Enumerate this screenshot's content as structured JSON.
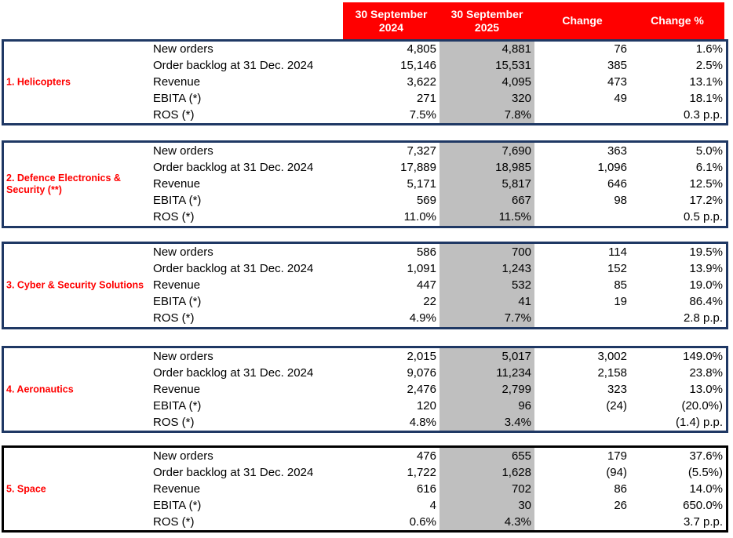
{
  "header": {
    "columns": [
      "30 September\n2024",
      "30 September\n2025",
      "Change",
      "Change %"
    ]
  },
  "colors": {
    "header_bg": "#FF0000",
    "header_text": "#FFFFFF",
    "section_label_text": "#FF0000",
    "block_border_navy": "#1F3864",
    "block_border_black": "#000000",
    "highlight_column_bg": "#BFBFBF",
    "value_text": "#000000"
  },
  "sections": [
    {
      "label": "1. Helicopters",
      "border_color": "#1F3864",
      "rows": [
        {
          "label": "New orders",
          "v2024": "4,805",
          "v2025": "4,881",
          "change": "76",
          "change_pct": "1.6%"
        },
        {
          "label": "Order backlog at 31 Dec. 2024",
          "v2024": "15,146",
          "v2025": "15,531",
          "change": "385",
          "change_pct": "2.5%"
        },
        {
          "label": "Revenue",
          "v2024": "3,622",
          "v2025": "4,095",
          "change": "473",
          "change_pct": "13.1%"
        },
        {
          "label": "EBITA (*)",
          "v2024": "271",
          "v2025": "320",
          "change": "49",
          "change_pct": "18.1%"
        },
        {
          "label": "ROS (*)",
          "v2024": "7.5%",
          "v2025": "7.8%",
          "change": "",
          "change_pct": "0.3 p.p."
        }
      ]
    },
    {
      "label": "2. Defence Electronics & Security (**)",
      "border_color": "#1F3864",
      "rows": [
        {
          "label": "New orders",
          "v2024": "7,327",
          "v2025": "7,690",
          "change": "363",
          "change_pct": "5.0%"
        },
        {
          "label": "Order backlog at 31 Dec. 2024",
          "v2024": "17,889",
          "v2025": "18,985",
          "change": "1,096",
          "change_pct": "6.1%"
        },
        {
          "label": "Revenue",
          "v2024": "5,171",
          "v2025": "5,817",
          "change": "646",
          "change_pct": "12.5%"
        },
        {
          "label": "EBITA (*)",
          "v2024": "569",
          "v2025": "667",
          "change": "98",
          "change_pct": "17.2%"
        },
        {
          "label": "ROS (*)",
          "v2024": "11.0%",
          "v2025": "11.5%",
          "change": "",
          "change_pct": "0.5 p.p."
        }
      ]
    },
    {
      "label": "3. Cyber & Security Solutions",
      "border_color": "#1F3864",
      "rows": [
        {
          "label": "New orders",
          "v2024": "586",
          "v2025": "700",
          "change": "114",
          "change_pct": "19.5%"
        },
        {
          "label": "Order backlog at 31 Dec. 2024",
          "v2024": "1,091",
          "v2025": "1,243",
          "change": "152",
          "change_pct": "13.9%"
        },
        {
          "label": "Revenue",
          "v2024": "447",
          "v2025": "532",
          "change": "85",
          "change_pct": "19.0%"
        },
        {
          "label": "EBITA (*)",
          "v2024": "22",
          "v2025": "41",
          "change": "19",
          "change_pct": "86.4%"
        },
        {
          "label": "ROS (*)",
          "v2024": "4.9%",
          "v2025": "7.7%",
          "change": "",
          "change_pct": "2.8 p.p."
        }
      ]
    },
    {
      "label": "4. Aeronautics",
      "border_color": "#1F3864",
      "rows": [
        {
          "label": "New orders",
          "v2024": "2,015",
          "v2025": "5,017",
          "change": "3,002",
          "change_pct": "149.0%"
        },
        {
          "label": "Order backlog at 31 Dec. 2024",
          "v2024": "9,076",
          "v2025": "11,234",
          "change": "2,158",
          "change_pct": "23.8%"
        },
        {
          "label": "Revenue",
          "v2024": "2,476",
          "v2025": "2,799",
          "change": "323",
          "change_pct": "13.0%"
        },
        {
          "label": "EBITA (*)",
          "v2024": "120",
          "v2025": "96",
          "change": "(24)",
          "change_pct": "(20.0%)"
        },
        {
          "label": "ROS (*)",
          "v2024": "4.8%",
          "v2025": "3.4%",
          "change": "",
          "change_pct": "(1.4) p.p."
        }
      ]
    },
    {
      "label": "5. Space",
      "border_color": "#000000",
      "rows": [
        {
          "label": "New orders",
          "v2024": "476",
          "v2025": "655",
          "change": "179",
          "change_pct": "37.6%"
        },
        {
          "label": "Order backlog at 31 Dec. 2024",
          "v2024": "1,722",
          "v2025": "1,628",
          "change": "(94)",
          "change_pct": "(5.5%)"
        },
        {
          "label": "Revenue",
          "v2024": "616",
          "v2025": "702",
          "change": "86",
          "change_pct": "14.0%"
        },
        {
          "label": "EBITA (*)",
          "v2024": "4",
          "v2025": "30",
          "change": "26",
          "change_pct": "650.0%"
        },
        {
          "label": "ROS (*)",
          "v2024": "0.6%",
          "v2025": "4.3%",
          "change": "",
          "change_pct": "3.7 p.p."
        }
      ]
    }
  ]
}
